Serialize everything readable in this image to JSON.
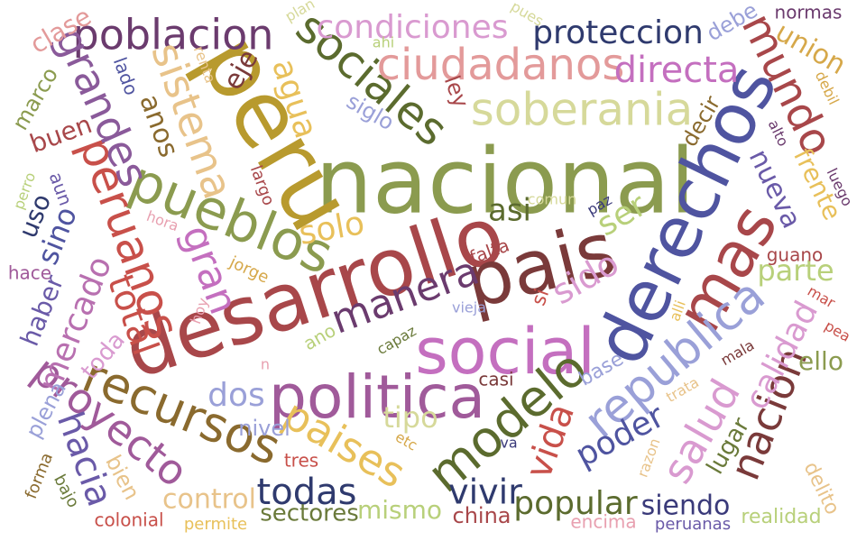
{
  "palette": [
    "#8b9b4f",
    "#a8474a",
    "#b89a2e",
    "#4f54a0",
    "#c46fbf",
    "#6b3b6e",
    "#5b6b2e",
    "#e39a9a",
    "#d6d99a",
    "#2f3a6e",
    "#8a6a2e",
    "#7a3a3a",
    "#9aa0d8",
    "#e8c38a",
    "#b8d07a",
    "#d99ad0",
    "#c8504a",
    "#6a5aa8",
    "#d6a84a",
    "#a05a9a",
    "#6a7a3a",
    "#e8a0b0",
    "#3a3a7a",
    "#9a9a4a"
  ],
  "words": [
    {
      "text": "nacional",
      "color": "#8b9b4f"
    },
    {
      "text": "peru",
      "color": "#b89a2e"
    },
    {
      "text": "desarrollo",
      "color": "#a8474a"
    },
    {
      "text": "derechos",
      "color": "#4f54a0"
    },
    {
      "text": "pais",
      "color": "#7a3a3a"
    },
    {
      "text": "social",
      "color": "#c46fbf"
    },
    {
      "text": "politica",
      "color": "#a05a9a"
    },
    {
      "text": "mas",
      "color": "#a8474a"
    },
    {
      "text": "republica",
      "color": "#9aa0d8"
    },
    {
      "text": "pueblos",
      "color": "#8b9b4f"
    },
    {
      "text": "recursos",
      "color": "#8a6a2e"
    },
    {
      "text": "modelo",
      "color": "#5b6b2e"
    },
    {
      "text": "sociales",
      "color": "#5b6b2e"
    },
    {
      "text": "soberania",
      "color": "#d6d99a"
    },
    {
      "text": "ciudadanos",
      "color": "#e39a9a"
    },
    {
      "text": "poblacion",
      "color": "#6b3b6e"
    },
    {
      "text": "peruanos",
      "color": "#c8504a"
    },
    {
      "text": "sistema",
      "color": "#e8c38a"
    },
    {
      "text": "grandes",
      "color": "#8a5a9a"
    },
    {
      "text": "mundo",
      "color": "#a8474a"
    },
    {
      "text": "salud",
      "color": "#d99ad0"
    },
    {
      "text": "nacion",
      "color": "#7a3a3a"
    },
    {
      "text": "proyecto",
      "color": "#a05a9a"
    },
    {
      "text": "paises",
      "color": "#e8c05a"
    },
    {
      "text": "manera",
      "color": "#6b3b6e"
    },
    {
      "text": "directa",
      "color": "#c46fbf"
    },
    {
      "text": "proteccion",
      "color": "#2f3a6e"
    },
    {
      "text": "condiciones",
      "color": "#d99ad0"
    },
    {
      "text": "calidad",
      "color": "#d99ad0"
    },
    {
      "text": "gran",
      "color": "#c46fbf"
    },
    {
      "text": "mercado",
      "color": "#b870b0"
    },
    {
      "text": "total",
      "color": "#c8504a"
    },
    {
      "text": "todas",
      "color": "#2f3a6e"
    },
    {
      "text": "vivir",
      "color": "#2f3a6e"
    },
    {
      "text": "popular",
      "color": "#5b6b2e"
    },
    {
      "text": "poder",
      "color": "#4f54a0"
    },
    {
      "text": "vida",
      "color": "#c8504a"
    },
    {
      "text": "hacia",
      "color": "#6a5aa8"
    },
    {
      "text": "agua",
      "color": "#e8c05a"
    },
    {
      "text": "solo",
      "color": "#e8c05a"
    },
    {
      "text": "sido",
      "color": "#d99ad0"
    },
    {
      "text": "ser",
      "color": "#b8d07a"
    },
    {
      "text": "dos",
      "color": "#9aa0d8"
    },
    {
      "text": "parte",
      "color": "#b8d07a"
    },
    {
      "text": "nueva",
      "color": "#6a5aa8"
    },
    {
      "text": "frente",
      "color": "#e8c05a"
    },
    {
      "text": "union",
      "color": "#d6a84a"
    },
    {
      "text": "siendo",
      "color": "#3a3a7a"
    },
    {
      "text": "tipo",
      "color": "#d6d99a"
    },
    {
      "text": "control",
      "color": "#e8c38a"
    },
    {
      "text": "mismo",
      "color": "#b8d07a"
    },
    {
      "text": "sectores",
      "color": "#6a7a3a"
    },
    {
      "text": "sino",
      "color": "#4f54a0"
    },
    {
      "text": "uso",
      "color": "#2f3a6e"
    },
    {
      "text": "haber",
      "color": "#6a5aa8"
    },
    {
      "text": "plena",
      "color": "#9aa0d8"
    },
    {
      "text": "anos",
      "color": "#8a6a2e"
    },
    {
      "text": "clase",
      "color": "#e39a9a"
    },
    {
      "text": "marco",
      "color": "#8b9b4f"
    },
    {
      "text": "buen",
      "color": "#a8474a"
    },
    {
      "text": "eje",
      "color": "#7a3a3a"
    },
    {
      "text": "siglo",
      "color": "#9aa0d8"
    },
    {
      "text": "ley",
      "color": "#a8474a"
    },
    {
      "text": "decir",
      "color": "#8a6a2e"
    },
    {
      "text": "lugar",
      "color": "#6a7a3a"
    },
    {
      "text": "ello",
      "color": "#8b9b4f"
    },
    {
      "text": "nivel",
      "color": "#9aa0d8"
    },
    {
      "text": "china",
      "color": "#a8474a"
    },
    {
      "text": "bien",
      "color": "#e8c38a"
    },
    {
      "text": "toda",
      "color": "#d99ad0"
    },
    {
      "text": "debe",
      "color": "#9aa0d8"
    },
    {
      "text": "normas",
      "color": "#6b3b6e"
    },
    {
      "text": "guano",
      "color": "#a8474a"
    },
    {
      "text": "delito",
      "color": "#e8c38a"
    },
    {
      "text": "realidad",
      "color": "#b8d07a"
    },
    {
      "text": "peruanas",
      "color": "#6a5aa8"
    },
    {
      "text": "encima",
      "color": "#e8a0b0"
    },
    {
      "text": "colonial",
      "color": "#c8504a"
    },
    {
      "text": "permite",
      "color": "#e8c05a"
    },
    {
      "text": "tres",
      "color": "#c8504a"
    },
    {
      "text": "casi",
      "color": "#7a3a3a"
    },
    {
      "text": "base",
      "color": "#9aa0d8"
    },
    {
      "text": "falta",
      "color": "#a8474a"
    },
    {
      "text": "si",
      "color": "#c8504a"
    },
    {
      "text": "asi",
      "color": "#5b6b2e"
    },
    {
      "text": "jorge",
      "color": "#d6a84a"
    },
    {
      "text": "largo",
      "color": "#a8474a"
    },
    {
      "text": "hora",
      "color": "#e8a0b0"
    },
    {
      "text": "hoy",
      "color": "#e8a0b0"
    },
    {
      "text": "ano",
      "color": "#b8d07a"
    },
    {
      "text": "capaz",
      "color": "#6a7a3a"
    },
    {
      "text": "vieja",
      "color": "#9aa0d8"
    },
    {
      "text": "comun",
      "color": "#d6d99a"
    },
    {
      "text": "paz",
      "color": "#3a3a7a"
    },
    {
      "text": "hace",
      "color": "#a05a9a"
    },
    {
      "text": "perro",
      "color": "#b8d07a"
    },
    {
      "text": "aun",
      "color": "#6a5aa8"
    },
    {
      "text": "lado",
      "color": "#4f54a0"
    },
    {
      "text": "renta",
      "color": "#e8c38a"
    },
    {
      "text": "plan",
      "color": "#d6d99a"
    },
    {
      "text": "ahi",
      "color": "#b8d07a"
    },
    {
      "text": "pues",
      "color": "#d6d99a"
    },
    {
      "text": "alto",
      "color": "#6b3b6e"
    },
    {
      "text": "luego",
      "color": "#6b3b6e"
    },
    {
      "text": "debil",
      "color": "#d6a84a"
    },
    {
      "text": "mar",
      "color": "#c8504a"
    },
    {
      "text": "pea",
      "color": "#c8504a"
    },
    {
      "text": "alli",
      "color": "#e8c05a"
    },
    {
      "text": "mala",
      "color": "#7a3a3a"
    },
    {
      "text": "trata",
      "color": "#e8c38a"
    },
    {
      "text": "razon",
      "color": "#e8c38a"
    },
    {
      "text": "va",
      "color": "#3a3a7a"
    },
    {
      "text": "etc",
      "color": "#d6a84a"
    },
    {
      "text": "forma",
      "color": "#8a6a2e"
    },
    {
      "text": "bajo",
      "color": "#6a7a3a"
    },
    {
      "text": "n",
      "color": "#e8a0b0"
    }
  ]
}
